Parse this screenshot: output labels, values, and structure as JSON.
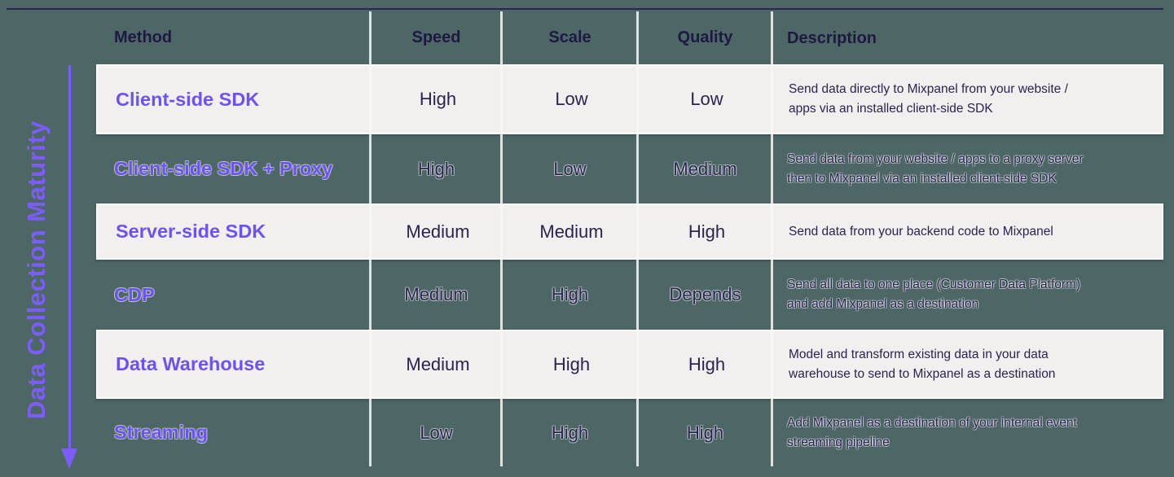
{
  "figure": {
    "axis_label": "Data Collection Maturity"
  },
  "table": {
    "headers": [
      "Method",
      "Speed",
      "Scale",
      "Quality",
      "Description"
    ],
    "rows": [
      {
        "method": "Client-side SDK",
        "speed": "High",
        "scale": "Low",
        "quality": "Low",
        "description": "Send data directly to Mixpanel from your website /\napps via an installed client-side SDK",
        "faded": false
      },
      {
        "method": "Client-side SDK + Proxy",
        "speed": "High",
        "scale": "Low",
        "quality": "Medium",
        "description": "Send data from your website / apps to a proxy server\nthen to Mixpanel via an installed client-side SDK",
        "faded": true
      },
      {
        "method": "Server-side SDK",
        "speed": "Medium",
        "scale": "Medium",
        "quality": "High",
        "description": "Send data from your backend code to Mixpanel",
        "faded": false
      },
      {
        "method": "CDP",
        "speed": "Medium",
        "scale": "High",
        "quality": "Depends",
        "description": "Send all data to one place (Customer Data Platform)\nand add Mixpanel as a destination",
        "faded": true
      },
      {
        "method": "Data Warehouse",
        "speed": "Medium",
        "scale": "High",
        "quality": "High",
        "description": "Model and transform existing data in your data\nwarehouse to send to Mixpanel as a destination",
        "faded": false
      },
      {
        "method": "Streaming",
        "speed": "Low",
        "scale": "High",
        "quality": "High",
        "description": "Add Mixpanel as a destination of your internal event\nstreaming pipeline",
        "faded": true
      }
    ]
  },
  "colors": {
    "background_teal": "#4d6767",
    "card_background": "#f1f0ee",
    "accent_purple": "#6c52f4",
    "axis_purple": "#7c5dfb",
    "text_navy": "#2b2351",
    "header_navy": "#1f1941",
    "top_line": "#2c2454",
    "separator_line": "#f8f8f6"
  }
}
